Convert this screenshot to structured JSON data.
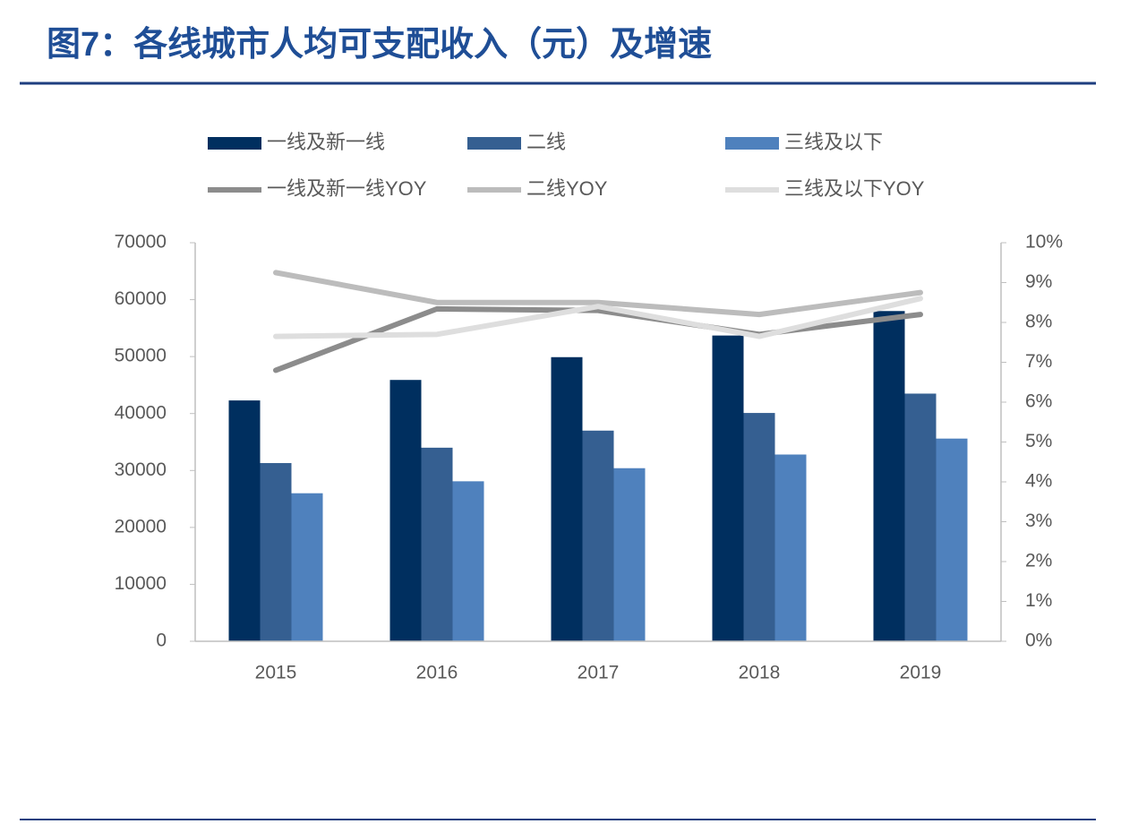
{
  "chart_data": {
    "type": "bar",
    "title": "图7：各线城市人均可支配收入（元）及增速",
    "categories": [
      "2015",
      "2016",
      "2017",
      "2018",
      "2019"
    ],
    "series": [
      {
        "name": "一线及新一线",
        "color": "#002f5f",
        "values": [
          42300,
          45900,
          49900,
          53700,
          58000
        ]
      },
      {
        "name": "二线",
        "color": "#355f91",
        "values": [
          31300,
          34000,
          37000,
          40100,
          43500
        ]
      },
      {
        "name": "三线及以下",
        "color": "#4f81bd",
        "values": [
          26000,
          28100,
          30400,
          32800,
          35600
        ]
      },
      {
        "name": "一线及新一线YOY",
        "type": "line",
        "axis": "y2",
        "color": "#8c8c8c",
        "values": [
          6.8,
          8.34,
          8.3,
          7.7,
          8.2
        ]
      },
      {
        "name": "二线YOY",
        "type": "line",
        "axis": "y2",
        "color": "#bcbcbc",
        "values": [
          9.25,
          8.5,
          8.5,
          8.2,
          8.75
        ]
      },
      {
        "name": "三线及以下YOY",
        "type": "line",
        "axis": "y2",
        "color": "#dedede",
        "values": [
          7.65,
          7.7,
          8.4,
          7.65,
          8.6
        ]
      }
    ],
    "ylim": [
      0,
      70000
    ],
    "yticks": [
      0,
      10000,
      20000,
      30000,
      40000,
      50000,
      60000,
      70000
    ],
    "y2lim": [
      0,
      10
    ],
    "y2ticks": [
      {
        "value": 0,
        "label": "0%"
      },
      {
        "value": 1,
        "label": "1%"
      },
      {
        "value": 2,
        "label": "2%"
      },
      {
        "value": 3,
        "label": "3%"
      },
      {
        "value": 4,
        "label": "4%"
      },
      {
        "value": 5,
        "label": "5%"
      },
      {
        "value": 6,
        "label": "6%"
      },
      {
        "value": 7,
        "label": "7%"
      },
      {
        "value": 8,
        "label": "8%"
      },
      {
        "value": 9,
        "label": "9%"
      },
      {
        "value": 10,
        "label": "10%"
      }
    ],
    "legend": "top"
  }
}
